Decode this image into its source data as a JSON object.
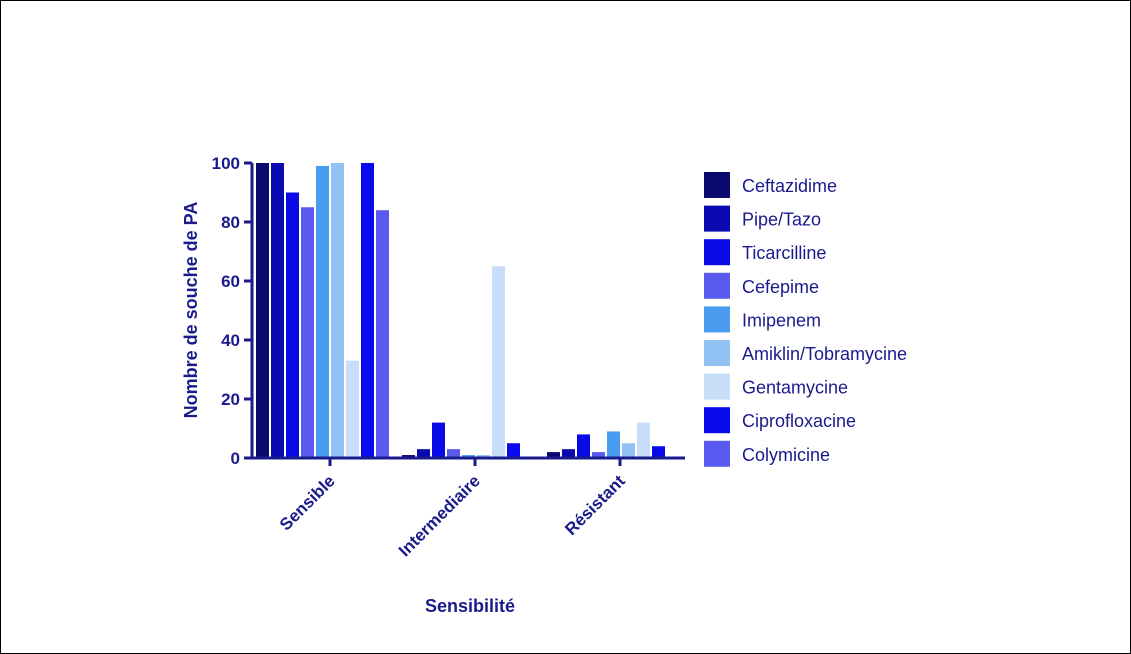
{
  "chart_data": {
    "type": "bar",
    "categories": [
      "Sensible",
      "Intermediaire",
      "Résistant"
    ],
    "series": [
      {
        "name": "Ceftazidime",
        "color": "#0a0a6e",
        "values": [
          100,
          1,
          2
        ]
      },
      {
        "name": "Pipe/Tazo",
        "color": "#0a0ab0",
        "values": [
          100,
          3,
          3
        ]
      },
      {
        "name": "Ticarcilline",
        "color": "#0a0ae6",
        "values": [
          90,
          12,
          8
        ]
      },
      {
        "name": "Cefepime",
        "color": "#5a5aee",
        "values": [
          85,
          3,
          2
        ]
      },
      {
        "name": "Imipenem",
        "color": "#4a9cf0",
        "values": [
          99,
          1,
          9
        ]
      },
      {
        "name": "Amiklin/Tobramycine",
        "color": "#92c2f4",
        "values": [
          100,
          1,
          5
        ]
      },
      {
        "name": "Gentamycine",
        "color": "#c8def8",
        "values": [
          33,
          65,
          12
        ]
      },
      {
        "name": "Ciprofloxacine",
        "color": "#0a0aee",
        "values": [
          100,
          5,
          4
        ]
      },
      {
        "name": "Colymicine",
        "color": "#5a5af0",
        "values": [
          84,
          null,
          null
        ]
      }
    ],
    "xlabel": "Sensibilité",
    "ylabel": "Nombre de souche de PA",
    "ylim": [
      0,
      100
    ],
    "yticks": [
      0,
      20,
      40,
      60,
      80,
      100
    ],
    "legend_position": "right",
    "grid": false
  }
}
